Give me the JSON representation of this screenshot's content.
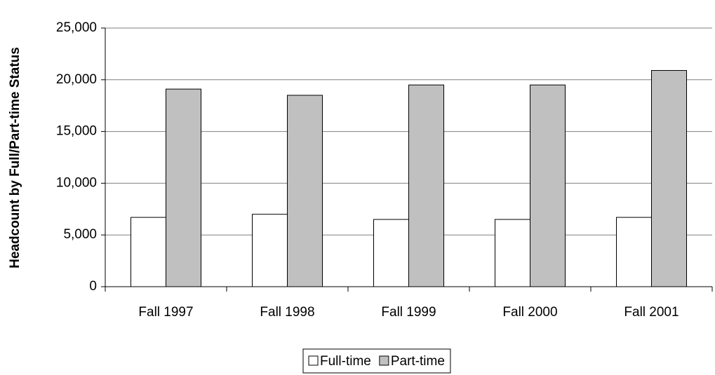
{
  "chart_data": {
    "type": "bar",
    "y_axis_label": "Headcount by Full/Part-time Status",
    "categories": [
      "Fall 1997",
      "Fall 1998",
      "Fall 1999",
      "Fall 2000",
      "Fall 2001"
    ],
    "series": [
      {
        "name": "Full-time",
        "color": "#ffffff",
        "values": [
          6700,
          7000,
          6500,
          6500,
          6700
        ]
      },
      {
        "name": "Part-time",
        "color": "#c0c0c0",
        "values": [
          19100,
          18500,
          19500,
          19500,
          20900
        ]
      }
    ],
    "ylim": [
      0,
      25000
    ],
    "yticks": [
      0,
      {
        "value": 5000,
        "label": "5,000"
      },
      {
        "value": 10000,
        "label": "10,000"
      },
      {
        "value": 15000,
        "label": "15,000"
      },
      {
        "value": 20000,
        "label": "20,000"
      },
      {
        "value": 25000,
        "label": "25,000"
      }
    ],
    "grid": true,
    "legend": "bottom"
  }
}
